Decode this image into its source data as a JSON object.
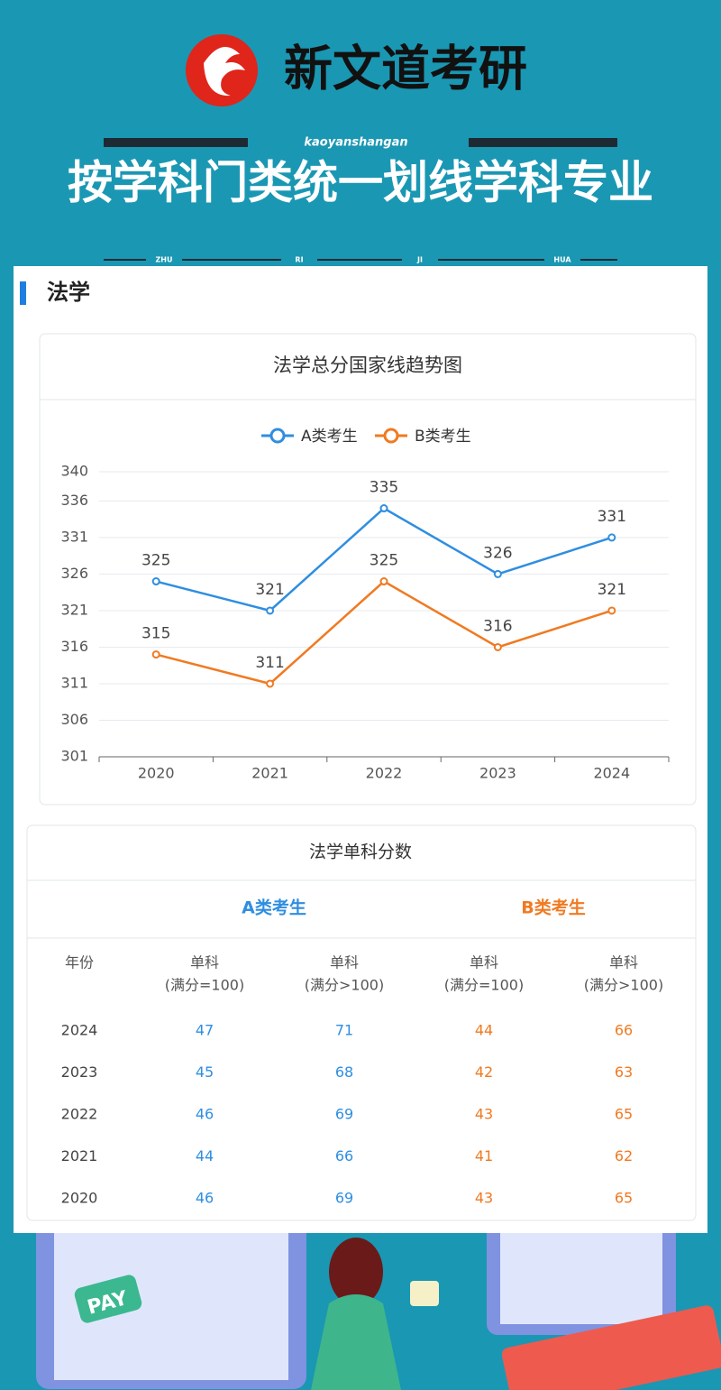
{
  "header": {
    "brand": "新文道考研",
    "tagline": "kaoyanshangan",
    "title": "按学科门类统一划线学科专业",
    "sub_words": [
      "ZHU",
      "RI",
      "JI",
      "HUA"
    ]
  },
  "section": {
    "title": "法学"
  },
  "chart_data": {
    "type": "line",
    "title": "法学总分国家线趋势图",
    "categories": [
      "2020",
      "2021",
      "2022",
      "2023",
      "2024"
    ],
    "series": [
      {
        "name": "A类考生",
        "color": "#2f8ee0",
        "values": [
          325,
          321,
          335,
          326,
          331
        ]
      },
      {
        "name": "B类考生",
        "color": "#f07a22",
        "values": [
          315,
          311,
          325,
          316,
          321
        ]
      }
    ],
    "ylim": [
      301,
      340
    ],
    "yticks": [
      301,
      306,
      311,
      316,
      321,
      326,
      331,
      336,
      340
    ],
    "grid": true,
    "legend": "top"
  },
  "table": {
    "title": "法学单科分数",
    "groups": [
      "A类考生",
      "B类考生"
    ],
    "columns": [
      [
        "年份"
      ],
      [
        "单科",
        "(满分=100)"
      ],
      [
        "单科",
        "(满分>100)"
      ],
      [
        "单科",
        "(满分=100)"
      ],
      [
        "单科",
        "(满分>100)"
      ]
    ],
    "rows": [
      [
        2024,
        47,
        71,
        44,
        66
      ],
      [
        2023,
        45,
        68,
        42,
        63
      ],
      [
        2022,
        46,
        69,
        43,
        65
      ],
      [
        2021,
        44,
        66,
        41,
        62
      ],
      [
        2020,
        46,
        69,
        43,
        65
      ]
    ]
  },
  "illustration": {
    "label": "PAY"
  }
}
